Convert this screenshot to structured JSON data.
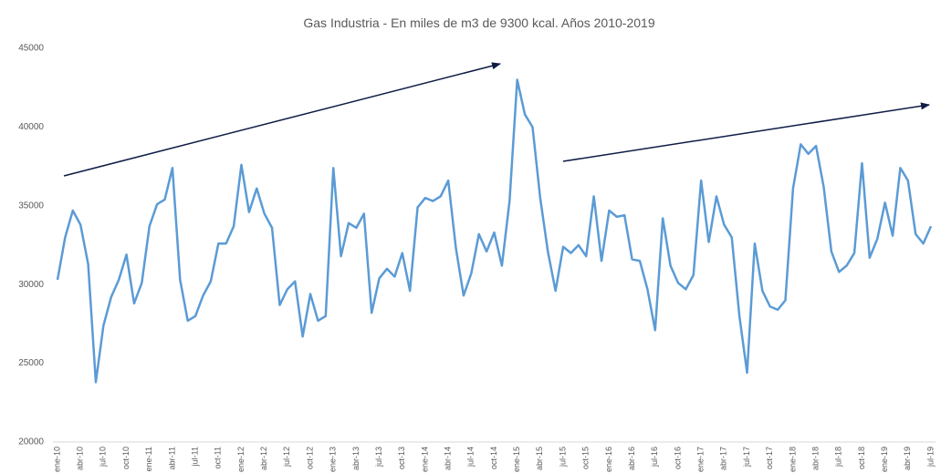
{
  "chart_data": {
    "type": "line",
    "title": "Gas Industria - En miles de m3 de 9300 kcal. Años 2010-2019",
    "categories": [
      "ene-10",
      null,
      null,
      "abr-10",
      null,
      null,
      "jul-10",
      null,
      null,
      "oct-10",
      null,
      null,
      "ene-11",
      null,
      null,
      "abr-11",
      null,
      null,
      "jul-11",
      null,
      null,
      "oct-11",
      null,
      null,
      "ene-12",
      null,
      null,
      "abr-12",
      null,
      null,
      "jul-12",
      null,
      null,
      "oct-12",
      null,
      null,
      "ene-13",
      null,
      null,
      "abr-13",
      null,
      null,
      "jul-13",
      null,
      null,
      "oct-13",
      null,
      null,
      "ene-14",
      null,
      null,
      "abr-14",
      null,
      null,
      "jul-14",
      null,
      null,
      "oct-14",
      null,
      null,
      "ene-15",
      null,
      null,
      "abr-15",
      null,
      null,
      "jul-15",
      null,
      null,
      "oct-15",
      null,
      null,
      "ene-16",
      null,
      null,
      "abr-16",
      null,
      null,
      "jul-16",
      null,
      null,
      "oct-16",
      null,
      null,
      "ene-17",
      null,
      null,
      "abr-17",
      null,
      null,
      "jul-17",
      null,
      null,
      "oct-17",
      null,
      null,
      "ene-18",
      null,
      null,
      "abr-18",
      null,
      null,
      "jul-18",
      null,
      null,
      "oct-18",
      null,
      null,
      "ene-19",
      null,
      null,
      "abr-19",
      null,
      null,
      "jul-19"
    ],
    "values": [
      30300,
      33000,
      34700,
      33800,
      31300,
      23800,
      27400,
      29200,
      30300,
      31900,
      28800,
      30100,
      33700,
      35100,
      35400,
      37400,
      30300,
      27700,
      28000,
      29300,
      30200,
      32600,
      32600,
      33700,
      37600,
      34600,
      36100,
      34500,
      33600,
      28700,
      29700,
      30200,
      26700,
      29400,
      27700,
      28000,
      37400,
      31800,
      33900,
      33600,
      34500,
      28200,
      30400,
      31000,
      30500,
      32000,
      29600,
      34900,
      35500,
      35300,
      35600,
      36600,
      32300,
      29300,
      30700,
      33200,
      32100,
      33300,
      31200,
      35300,
      43000,
      40800,
      40000,
      35500,
      32100,
      29600,
      32400,
      32000,
      32500,
      31800,
      35600,
      31500,
      34700,
      34300,
      34400,
      31600,
      31500,
      29700,
      27100,
      34200,
      31200,
      30100,
      29700,
      30600,
      36600,
      32700,
      35600,
      33800,
      33000,
      28000,
      24400,
      32600,
      29600,
      28600,
      28400,
      29000,
      36100,
      38900,
      38300,
      38800,
      36200,
      32100,
      30800,
      31200,
      32000,
      37700,
      31700,
      32900,
      35200,
      33100,
      37400,
      36600,
      33200,
      32600,
      33700
    ],
    "color": "#5b9bd5",
    "ylim": [
      20000,
      45000
    ],
    "yticks": [
      20000,
      25000,
      30000,
      35000,
      40000,
      45000
    ],
    "grid": false
  }
}
